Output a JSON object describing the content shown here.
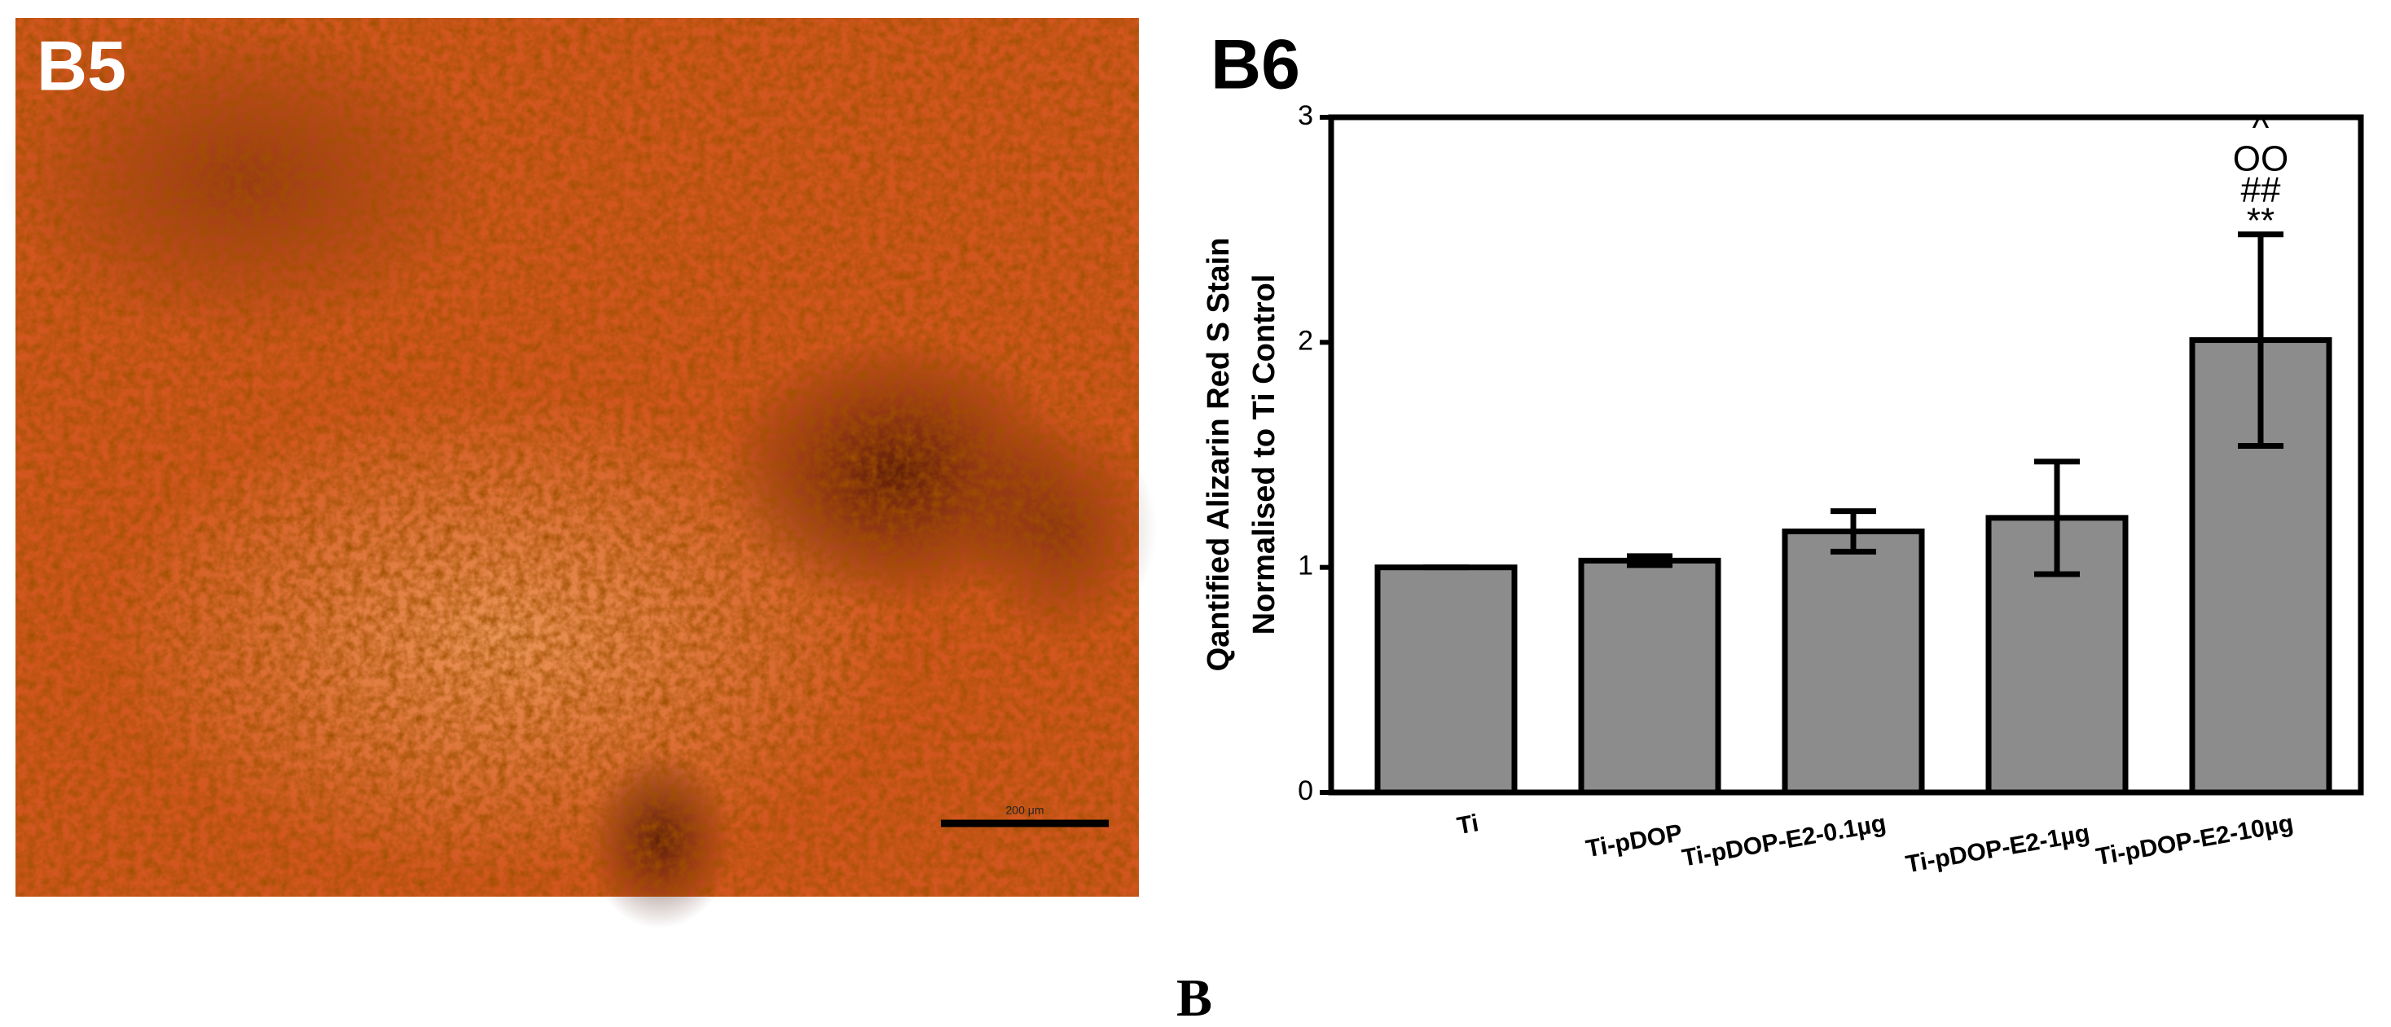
{
  "micrograph": {
    "label": "B5",
    "scale_bar": "200 μm"
  },
  "figure_label": "B",
  "chart_data": {
    "type": "bar",
    "title": "B6",
    "ylabel": [
      "Qantified Alizarin Red S Stain",
      "Normalised to Ti Control"
    ],
    "categories": [
      "Ti",
      "Ti-pDOP",
      "Ti-pDOP-E2-0.1µg",
      "Ti-pDOP-E2-1µg",
      "Ti-pDOP-E2-10µg"
    ],
    "values": [
      1.0,
      1.03,
      1.16,
      1.22,
      2.01
    ],
    "errors": [
      0,
      0.02,
      0.09,
      0.25,
      0.47
    ],
    "color": "#8c8c8c",
    "annotations": [
      "^",
      "OO",
      "##",
      "**"
    ],
    "ylim": [
      0,
      3
    ],
    "yticks": [
      0,
      1,
      2,
      3
    ]
  }
}
